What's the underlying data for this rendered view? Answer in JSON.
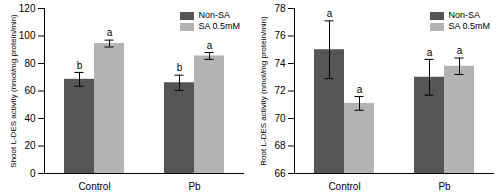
{
  "chart_data": [
    {
      "type": "bar",
      "y_label": "Shoot L-DES activity (nmol/mg protein/min)",
      "categories": [
        "Control",
        "Pb"
      ],
      "series": [
        {
          "name": "Non-SA",
          "color": "#555555",
          "values": [
            68.5,
            66
          ],
          "errors": [
            5,
            5.5
          ],
          "letters": [
            "b",
            "b"
          ]
        },
        {
          "name": "SA 0.5mM",
          "color": "#b3b3b3",
          "values": [
            94.5,
            85.5
          ],
          "errors": [
            2.5,
            2.5
          ],
          "letters": [
            "a",
            "a"
          ]
        }
      ],
      "ylim": [
        0,
        120
      ],
      "yticks": [
        0,
        20,
        40,
        60,
        80,
        100,
        120
      ],
      "legend": "upper right",
      "grid": false
    },
    {
      "type": "bar",
      "y_label": "Root L-DES activity (nmol/mg protein/min)",
      "categories": [
        "Control",
        "Pb"
      ],
      "series": [
        {
          "name": "Non-SA",
          "color": "#555555",
          "values": [
            75,
            73
          ],
          "errors": [
            2.1,
            1.3
          ],
          "letters": [
            "a",
            "a"
          ]
        },
        {
          "name": "SA 0.5mM",
          "color": "#b3b3b3",
          "values": [
            71.1,
            73.8
          ],
          "errors": [
            0.5,
            0.6
          ],
          "letters": [
            "a",
            "a"
          ]
        }
      ],
      "ylim": [
        66,
        78
      ],
      "yticks": [
        66,
        68,
        70,
        72,
        74,
        76,
        78
      ],
      "legend": "upper right",
      "grid": false
    }
  ]
}
